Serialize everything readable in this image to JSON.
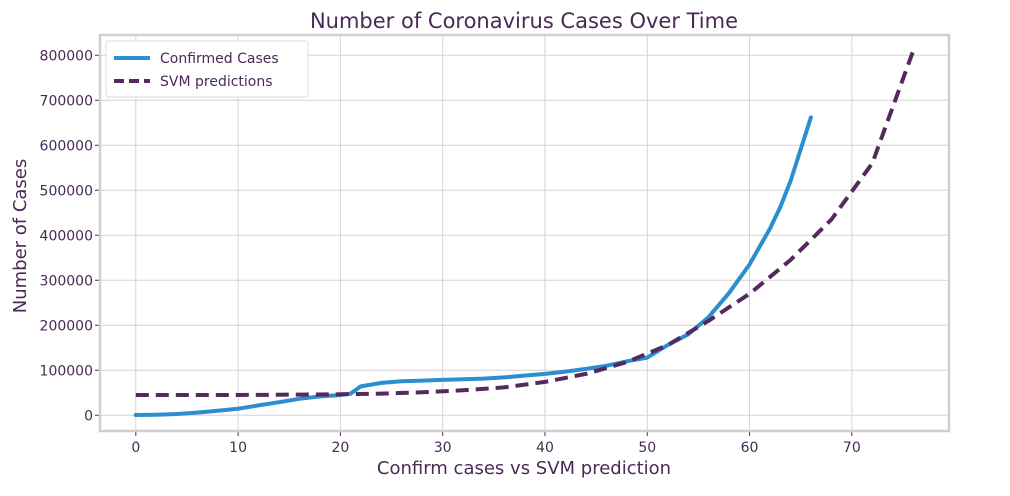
{
  "chart_data": {
    "type": "line",
    "title": "Number of Coronavirus Cases Over Time",
    "xlabel": "Confirm cases vs SVM prediction",
    "ylabel": "Number of Cases",
    "xlim": [
      -3.5,
      79.5
    ],
    "ylim": [
      -35000,
      845000
    ],
    "xticks": [
      0,
      10,
      20,
      30,
      40,
      50,
      60,
      70
    ],
    "yticks": [
      0,
      100000,
      200000,
      300000,
      400000,
      500000,
      600000,
      700000,
      800000
    ],
    "grid": true,
    "legend": "top-left",
    "series": [
      {
        "name": "Confirmed Cases",
        "style": "solid",
        "color": "#2b8fce",
        "x": [
          0,
          2,
          4,
          6,
          8,
          10,
          12,
          14,
          16,
          18,
          20,
          21,
          22,
          24,
          26,
          28,
          30,
          32,
          34,
          36,
          38,
          40,
          42,
          44,
          46,
          48,
          50,
          52,
          54,
          56,
          58,
          60,
          62,
          63,
          64,
          66
        ],
        "y": [
          555,
          1200,
          2800,
          6000,
          9800,
          14500,
          22000,
          29000,
          36500,
          42000,
          45000,
          48000,
          64000,
          72000,
          75500,
          77000,
          78500,
          80000,
          81500,
          84000,
          88000,
          92000,
          97000,
          103000,
          110000,
          120000,
          128000,
          156000,
          180000,
          218000,
          272000,
          335000,
          415000,
          462000,
          520000,
          662000
        ]
      },
      {
        "name": "SVM predictions",
        "style": "dashed",
        "color": "#55285e",
        "x": [
          0,
          4,
          8,
          12,
          16,
          20,
          24,
          28,
          32,
          36,
          40,
          44,
          48,
          52,
          56,
          60,
          64,
          68,
          72,
          76
        ],
        "y": [
          45000,
          45000,
          45100,
          45300,
          45800,
          46500,
          48000,
          51000,
          55500,
          62000,
          74000,
          92000,
          118000,
          156000,
          210000,
          270000,
          345000,
          435000,
          560000,
          810000
        ]
      }
    ]
  }
}
